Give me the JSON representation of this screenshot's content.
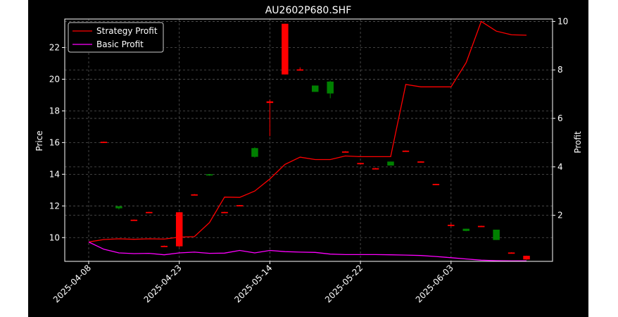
{
  "chart_data": {
    "type": "candlestick+line",
    "title": "AU2602P680.SHF",
    "xlabel": "",
    "ylabel_left": "Price",
    "ylabel_right": "Profit",
    "ylim_left": [
      8.5,
      23.8
    ],
    "ylim_right": [
      0.1,
      10.1
    ],
    "yticks_left": [
      "10",
      "12",
      "14",
      "16",
      "18",
      "20",
      "22"
    ],
    "yticks_right": [
      "2",
      "4",
      "6",
      "8",
      "10"
    ],
    "grid": true,
    "legend_position": "top-left",
    "colors": {
      "up": "#008000",
      "down": "#ff0000",
      "strategy": "#ff0000",
      "basic": "#ff00ff",
      "background": "#000000",
      "foreground": "#ffffff"
    },
    "xticks": [
      {
        "label": "2025-04-08",
        "index": 0
      },
      {
        "label": "2025-04-23",
        "index": 6
      },
      {
        "label": "2025-05-14",
        "index": 12
      },
      {
        "label": "2025-05-22",
        "index": 18
      },
      {
        "label": "2025-06-03",
        "index": 24
      }
    ],
    "candles": [
      {
        "i": 1,
        "open": 16.05,
        "high": 16.06,
        "low": 16.02,
        "close": 16.04
      },
      {
        "i": 2,
        "open": 11.85,
        "high": 11.98,
        "low": 11.78,
        "close": 11.98
      },
      {
        "i": 3,
        "open": 11.13,
        "high": 11.14,
        "low": 11.1,
        "close": 11.12
      },
      {
        "i": 4,
        "open": 11.62,
        "high": 11.63,
        "low": 11.6,
        "close": 11.61
      },
      {
        "i": 5,
        "open": 9.48,
        "high": 9.5,
        "low": 9.46,
        "close": 9.47
      },
      {
        "i": 6,
        "open": 11.6,
        "high": 11.62,
        "low": 9.4,
        "close": 9.45
      },
      {
        "i": 7,
        "open": 12.73,
        "high": 12.75,
        "low": 12.7,
        "close": 12.72
      },
      {
        "i": 8,
        "open": 13.93,
        "high": 14.0,
        "low": 13.9,
        "close": 14.0
      },
      {
        "i": 9,
        "open": 11.62,
        "high": 11.63,
        "low": 11.6,
        "close": 11.61
      },
      {
        "i": 10,
        "open": 12.05,
        "high": 12.06,
        "low": 12.02,
        "close": 12.04
      },
      {
        "i": 11,
        "open": 15.1,
        "high": 15.7,
        "low": 15.05,
        "close": 15.65
      },
      {
        "i": 12,
        "open": 18.6,
        "high": 18.7,
        "low": 16.4,
        "close": 18.5
      },
      {
        "i": 13,
        "open": 23.5,
        "high": 23.5,
        "low": 20.3,
        "close": 20.3
      },
      {
        "i": 14,
        "open": 20.62,
        "high": 20.75,
        "low": 20.55,
        "close": 20.6
      },
      {
        "i": 15,
        "open": 19.2,
        "high": 19.6,
        "low": 19.2,
        "close": 19.6
      },
      {
        "i": 16,
        "open": 19.1,
        "high": 19.9,
        "low": 18.8,
        "close": 19.85
      },
      {
        "i": 17,
        "open": 15.44,
        "high": 15.46,
        "low": 15.4,
        "close": 15.43
      },
      {
        "i": 18,
        "open": 14.71,
        "high": 14.72,
        "low": 14.68,
        "close": 14.7
      },
      {
        "i": 19,
        "open": 14.38,
        "high": 14.4,
        "low": 14.35,
        "close": 14.37
      },
      {
        "i": 20,
        "open": 14.55,
        "high": 14.8,
        "low": 14.55,
        "close": 14.8
      },
      {
        "i": 21,
        "open": 15.49,
        "high": 15.5,
        "low": 15.46,
        "close": 15.48
      },
      {
        "i": 22,
        "open": 14.81,
        "high": 14.82,
        "low": 14.78,
        "close": 14.8
      },
      {
        "i": 23,
        "open": 13.39,
        "high": 13.4,
        "low": 13.36,
        "close": 13.38
      },
      {
        "i": 24,
        "open": 10.81,
        "high": 10.9,
        "low": 10.7,
        "close": 10.8
      },
      {
        "i": 25,
        "open": 10.42,
        "high": 10.56,
        "low": 10.4,
        "close": 10.56
      },
      {
        "i": 26,
        "open": 10.74,
        "high": 10.75,
        "low": 10.72,
        "close": 10.73
      },
      {
        "i": 27,
        "open": 9.85,
        "high": 10.5,
        "low": 9.85,
        "close": 10.5
      },
      {
        "i": 28,
        "open": 9.06,
        "high": 9.07,
        "low": 9.04,
        "close": 9.05
      },
      {
        "i": 29,
        "open": 8.85,
        "high": 8.86,
        "low": 8.6,
        "close": 8.62
      }
    ],
    "series": [
      {
        "name": "Strategy Profit",
        "color": "#ff0000",
        "axis": "right",
        "values": [
          0.9,
          1.0,
          1.03,
          1.01,
          1.03,
          1.02,
          1.1,
          1.12,
          1.7,
          2.75,
          2.74,
          3.0,
          3.5,
          4.1,
          4.4,
          4.3,
          4.3,
          4.45,
          4.42,
          4.42,
          4.42,
          7.4,
          7.3,
          7.3,
          7.3,
          8.3,
          10.0,
          9.6,
          9.45,
          9.43
        ]
      },
      {
        "name": "Basic Profit",
        "color": "#ff00ff",
        "axis": "right",
        "values": [
          0.9,
          0.6,
          0.45,
          0.42,
          0.43,
          0.37,
          0.45,
          0.48,
          0.43,
          0.44,
          0.55,
          0.45,
          0.55,
          0.5,
          0.48,
          0.47,
          0.4,
          0.38,
          0.38,
          0.38,
          0.37,
          0.36,
          0.34,
          0.3,
          0.25,
          0.2,
          0.15,
          0.13,
          0.12,
          0.12
        ]
      }
    ]
  }
}
